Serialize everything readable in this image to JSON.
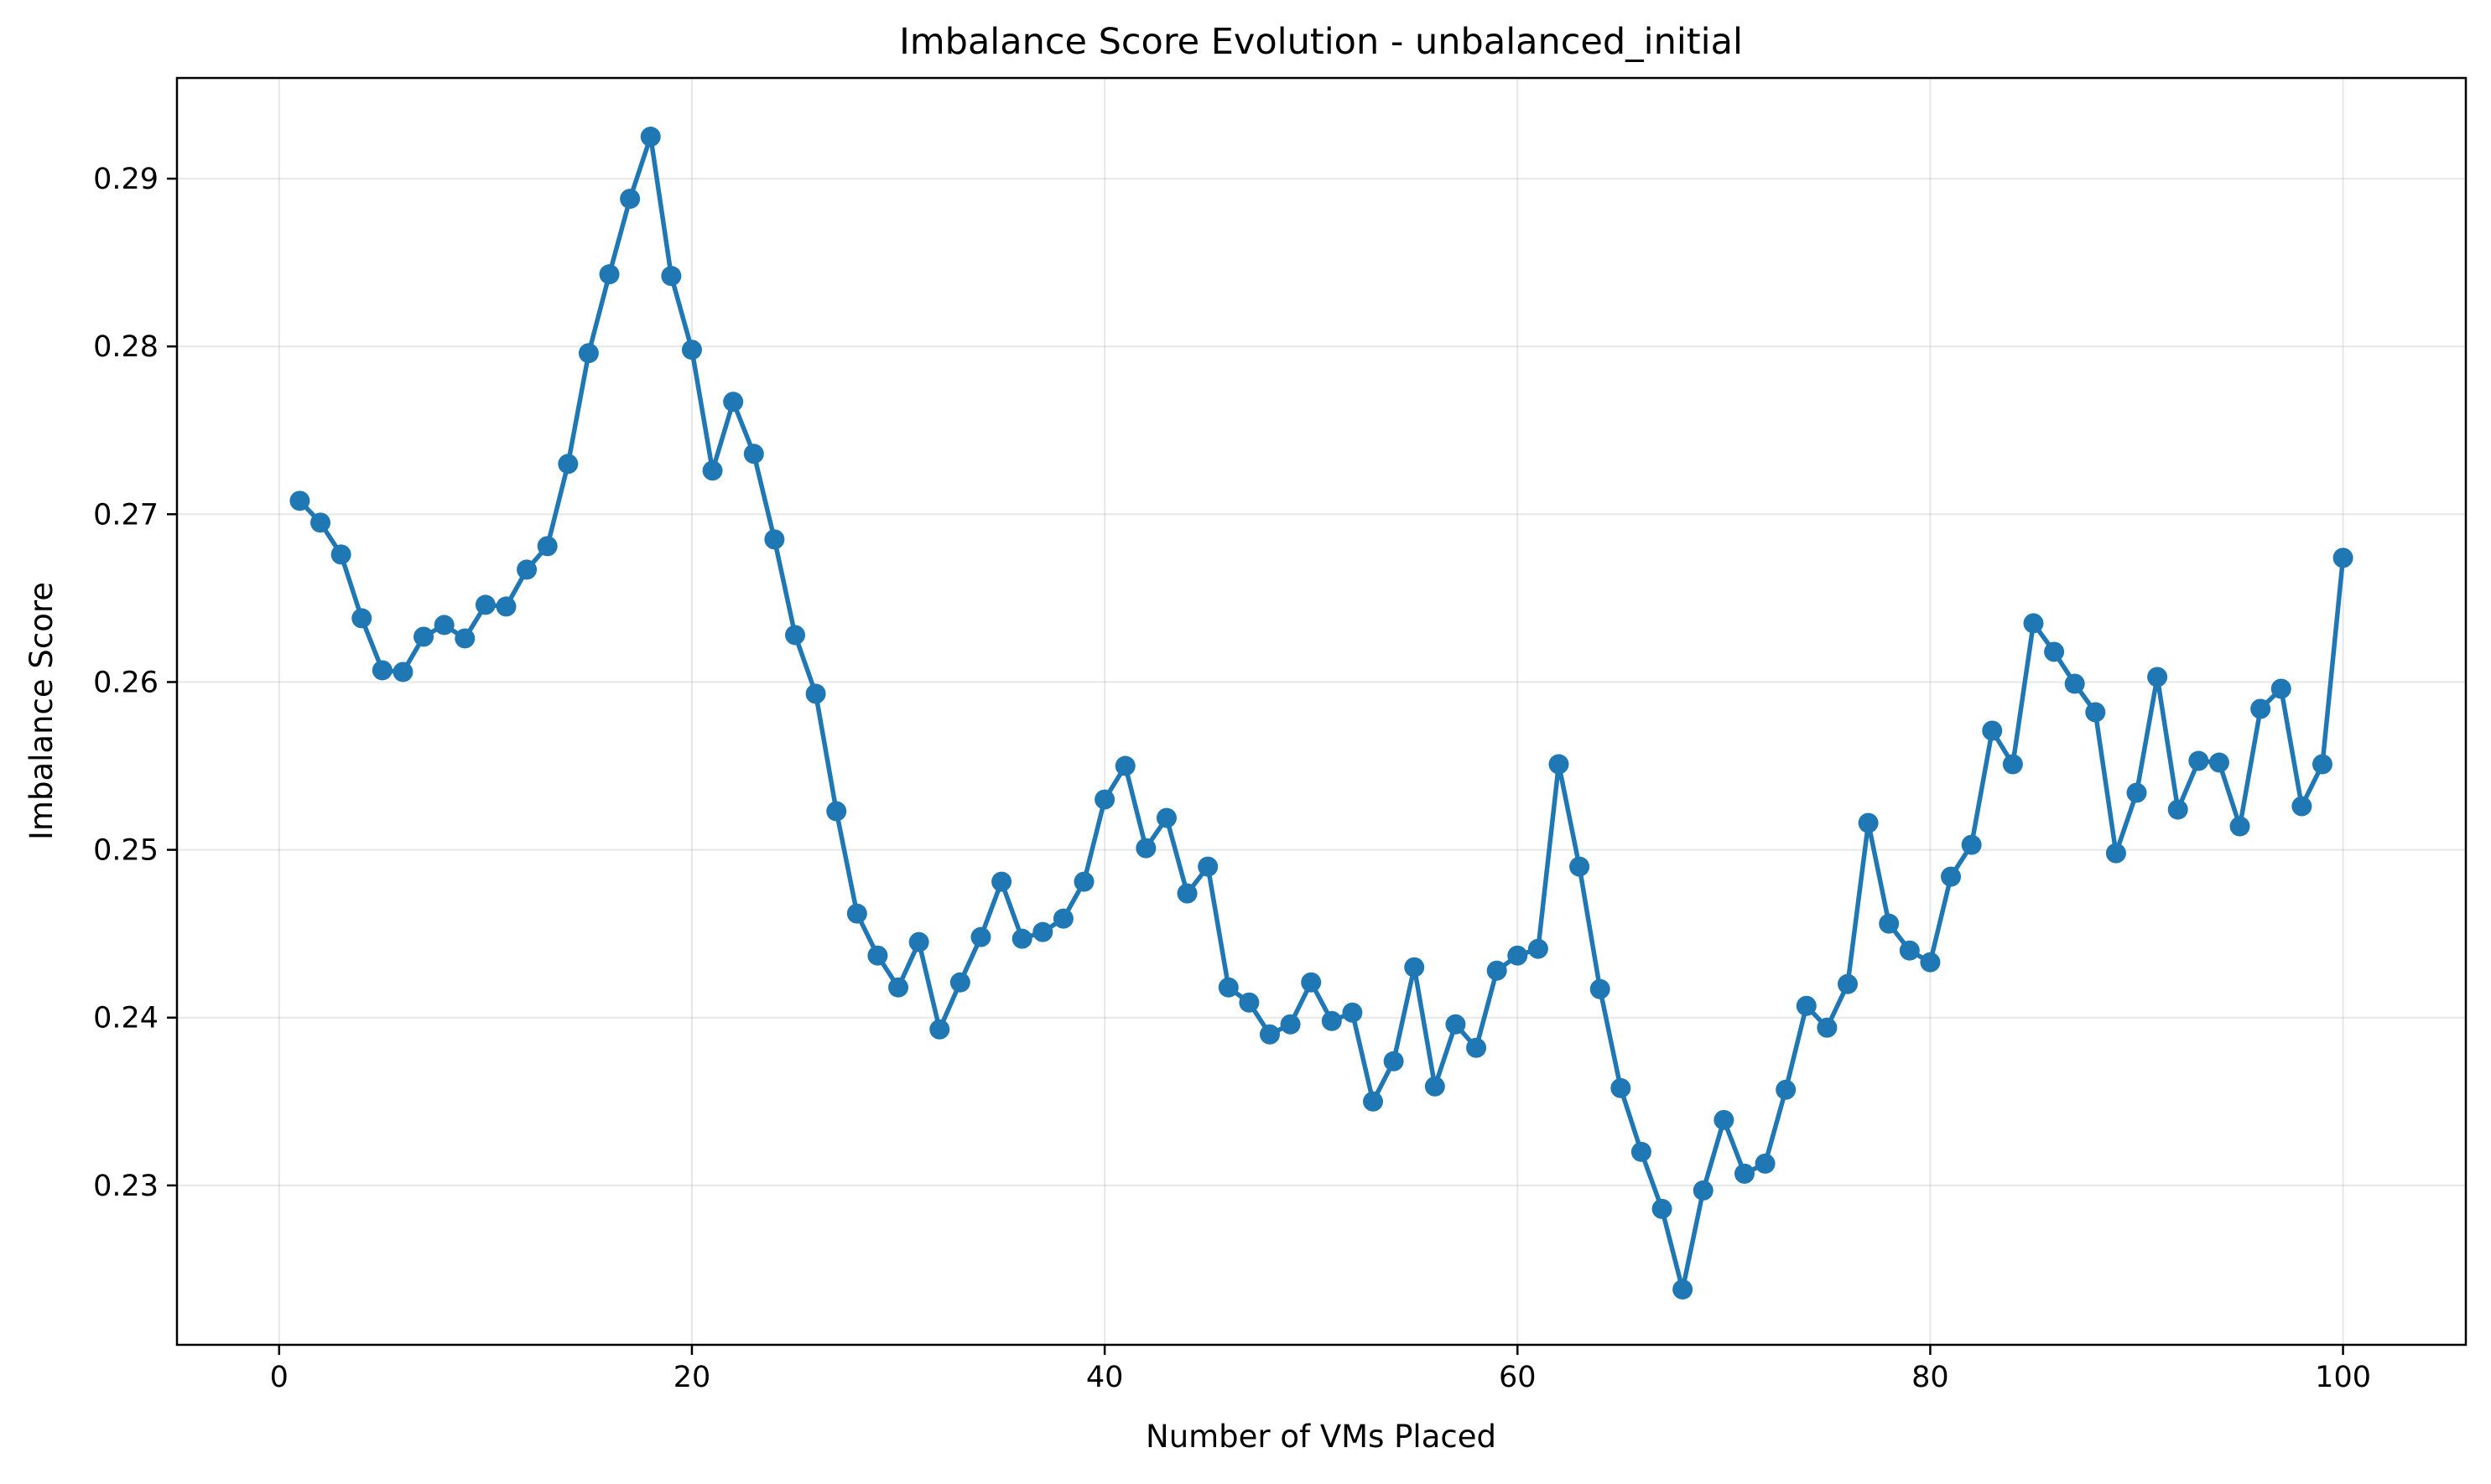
{
  "chart_data": {
    "type": "line",
    "title": "Imbalance Score Evolution - unbalanced_initial",
    "xlabel": "Number of VMs Placed",
    "ylabel": "Imbalance Score",
    "xlim": [
      -4.95,
      105.95
    ],
    "ylim": [
      0.2205,
      0.296
    ],
    "x_ticks": [
      0,
      20,
      40,
      60,
      80,
      100
    ],
    "x_tick_labels": [
      "0",
      "20",
      "40",
      "60",
      "80",
      "100"
    ],
    "y_ticks": [
      0.23,
      0.24,
      0.25,
      0.26,
      0.27,
      0.28,
      0.29
    ],
    "y_tick_labels": [
      "0.23",
      "0.24",
      "0.25",
      "0.26",
      "0.27",
      "0.28",
      "0.29"
    ],
    "grid": true,
    "legend": "none",
    "series": [
      {
        "color": "#1f77b4",
        "marker": "circle",
        "x": [
          1,
          2,
          3,
          4,
          5,
          6,
          7,
          8,
          9,
          10,
          11,
          12,
          13,
          14,
          15,
          16,
          17,
          18,
          19,
          20,
          21,
          22,
          23,
          24,
          25,
          26,
          27,
          28,
          29,
          30,
          31,
          32,
          33,
          34,
          35,
          36,
          37,
          38,
          39,
          40,
          41,
          42,
          43,
          44,
          45,
          46,
          47,
          48,
          49,
          50,
          51,
          52,
          53,
          54,
          55,
          56,
          57,
          58,
          59,
          60,
          61,
          62,
          63,
          64,
          65,
          66,
          67,
          68,
          69,
          70,
          71,
          72,
          73,
          74,
          75,
          76,
          77,
          78,
          79,
          80,
          81,
          82,
          83,
          84,
          85,
          86,
          87,
          88,
          89,
          90,
          91,
          92,
          93,
          94,
          95,
          96,
          97,
          98,
          99,
          100
        ],
        "values": [
          0.2708,
          0.2695,
          0.2676,
          0.2638,
          0.2607,
          0.2606,
          0.2627,
          0.2634,
          0.2626,
          0.2646,
          0.2645,
          0.2667,
          0.2681,
          0.273,
          0.2796,
          0.2843,
          0.2888,
          0.2925,
          0.2842,
          0.2798,
          0.2726,
          0.2767,
          0.2736,
          0.2685,
          0.2628,
          0.2593,
          0.2523,
          0.2462,
          0.2437,
          0.2418,
          0.2445,
          0.2393,
          0.2421,
          0.2448,
          0.2481,
          0.2447,
          0.2451,
          0.2459,
          0.2481,
          0.253,
          0.255,
          0.2501,
          0.2519,
          0.2474,
          0.249,
          0.2418,
          0.2409,
          0.239,
          0.2396,
          0.2421,
          0.2398,
          0.2403,
          0.235,
          0.2374,
          0.243,
          0.2359,
          0.2396,
          0.2382,
          0.2428,
          0.2437,
          0.2441,
          0.2551,
          0.249,
          0.2417,
          0.2358,
          0.232,
          0.2286,
          0.2238,
          0.2297,
          0.2339,
          0.2307,
          0.2313,
          0.2357,
          0.2407,
          0.2394,
          0.242,
          0.2516,
          0.2456,
          0.244,
          0.2433,
          0.2484,
          0.2503,
          0.2571,
          0.2551,
          0.2635,
          0.2618,
          0.2599,
          0.2582,
          0.2498,
          0.2534,
          0.2603,
          0.2524,
          0.2553,
          0.2552,
          0.2514,
          0.2584,
          0.2596,
          0.2526,
          0.2551,
          0.2674
        ]
      }
    ]
  }
}
